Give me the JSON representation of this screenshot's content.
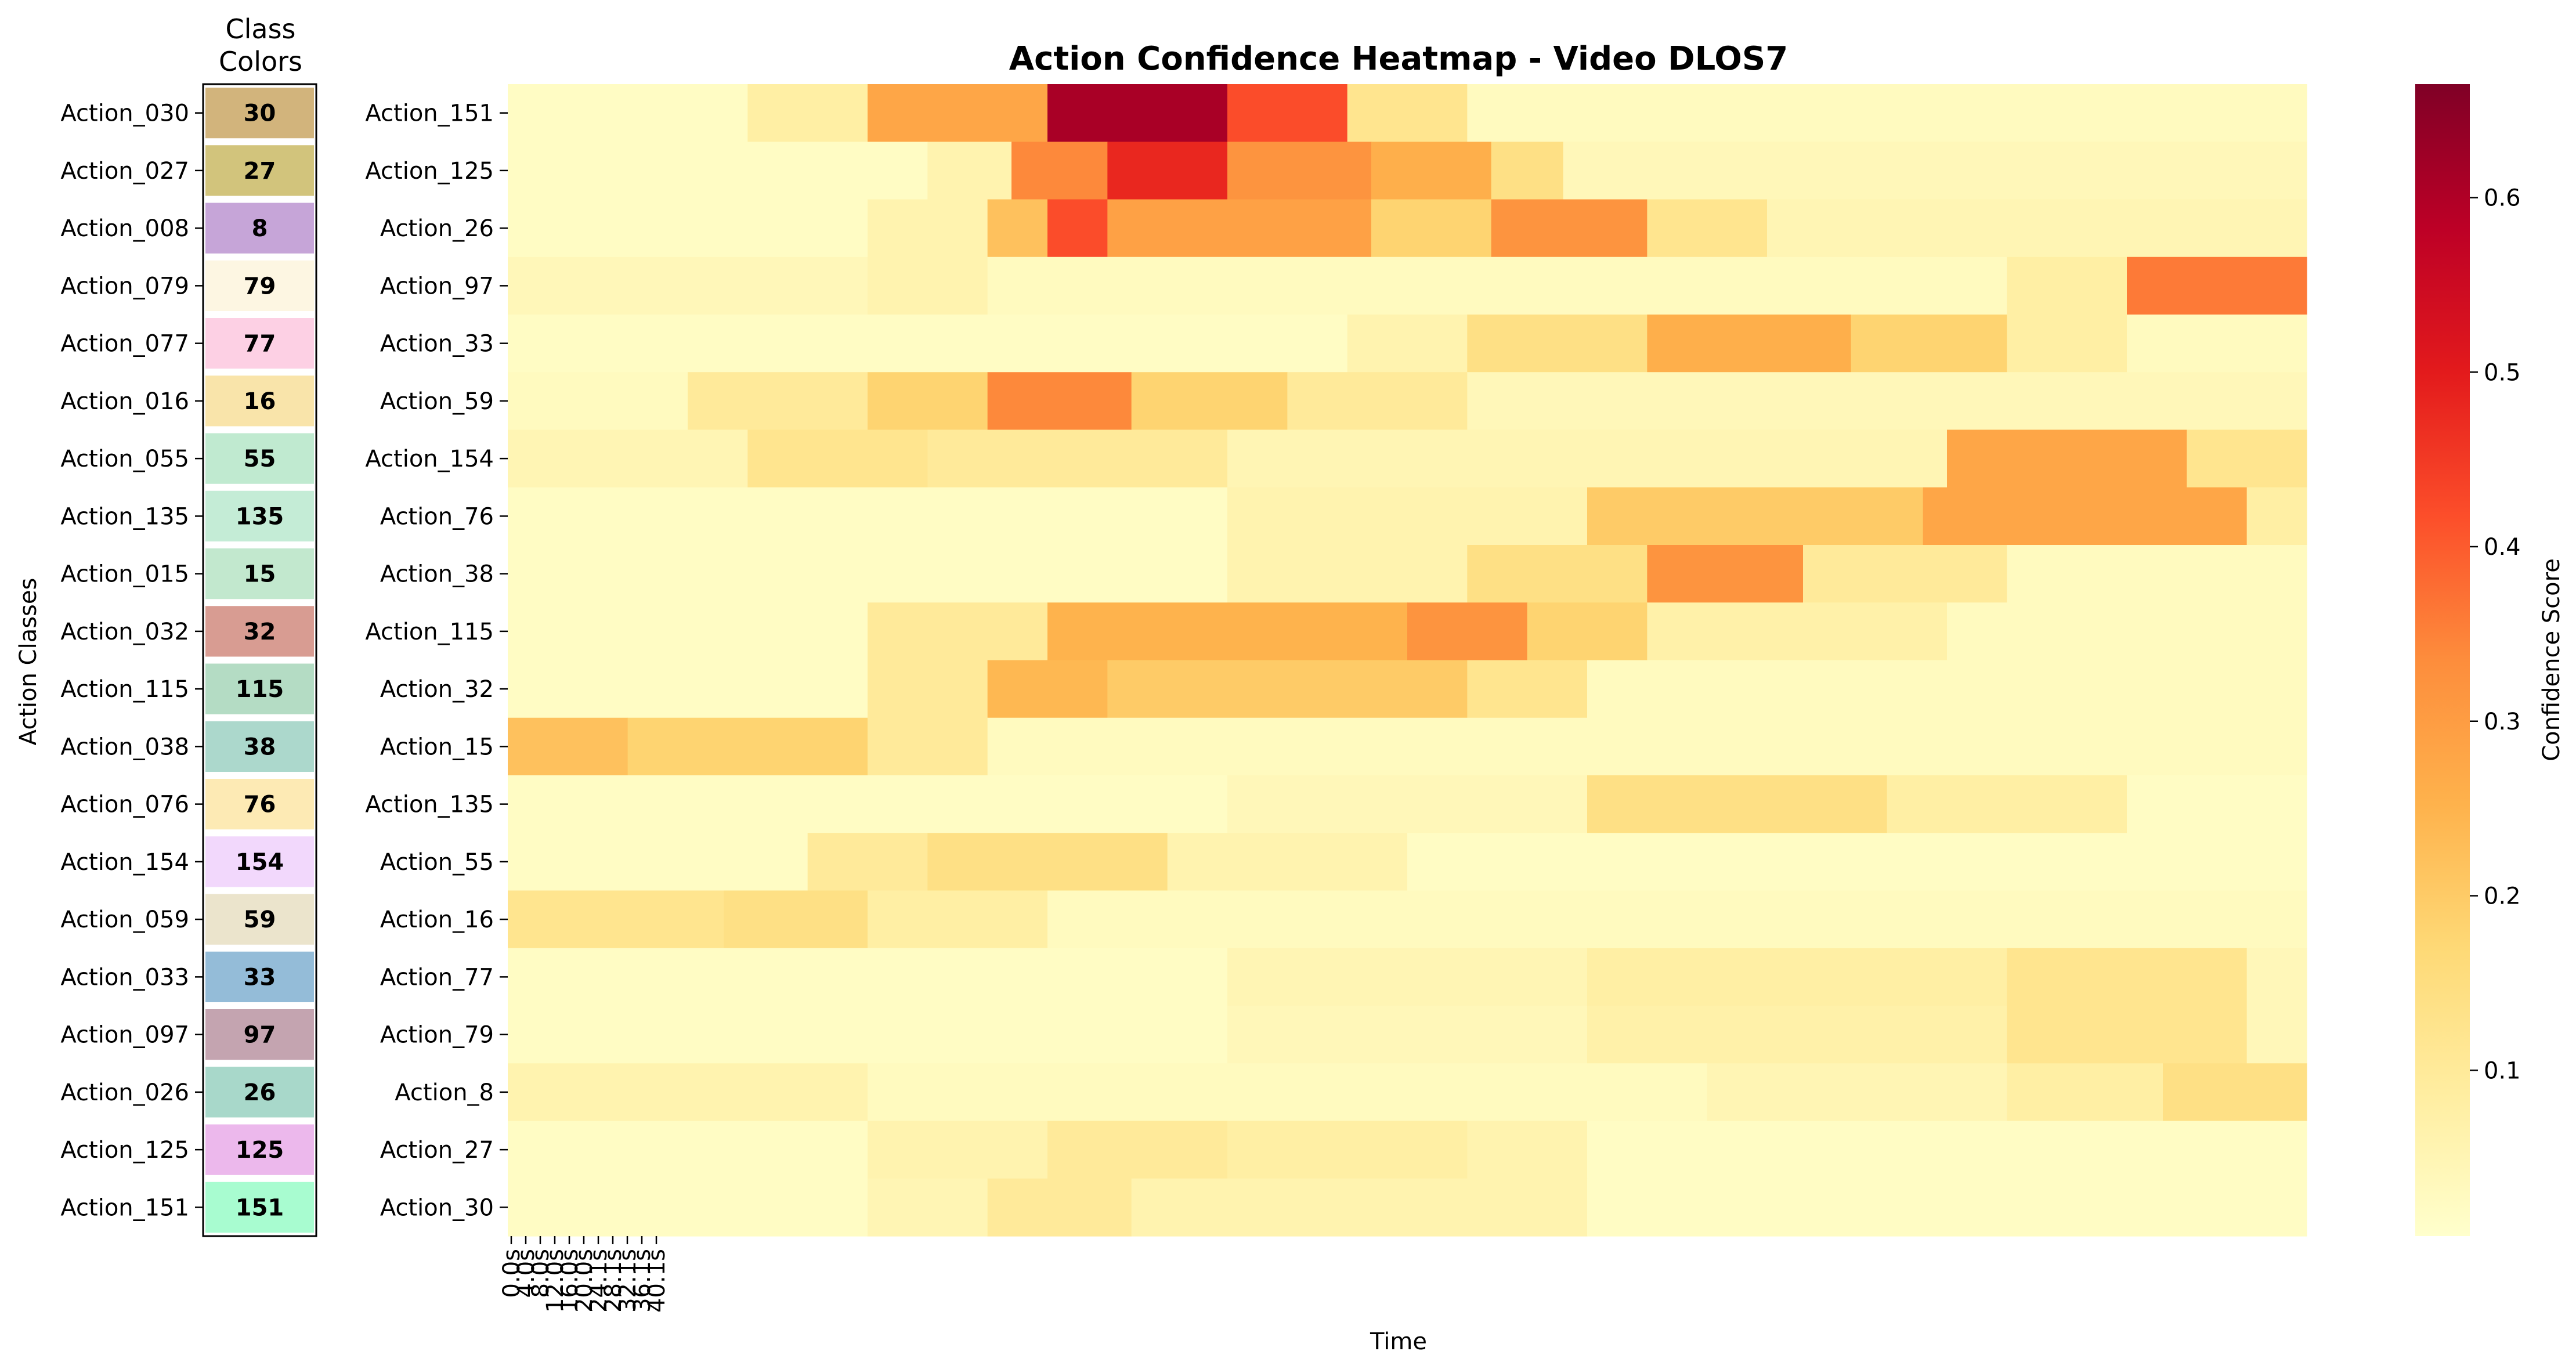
{
  "chart_data": {
    "type": "heatmap",
    "title": "Action Confidence Heatmap - Video DLOS7",
    "xlabel": "Time",
    "ylabel": "Action Classes",
    "colorbar_label": "Confidence Score",
    "colorbar_range": [
      0.005,
      0.665
    ],
    "colorbar_ticks": [
      "0.1",
      "0.2",
      "0.3",
      "0.4",
      "0.5",
      "0.6"
    ],
    "colormap": [
      "#ffffcc",
      "#ffeda0",
      "#fed976",
      "#feb24c",
      "#fd8d3c",
      "#fc4e2a",
      "#e31a1c",
      "#bd0026",
      "#800026"
    ],
    "time_ticks": [
      "0.0s",
      "4.0s",
      "8.0s",
      "12.0s",
      "16.0s",
      "20.0s",
      "24.1s",
      "28.1s",
      "32.1s",
      "36.1s",
      "40.1s"
    ],
    "time_step_count": 150,
    "rows": [
      {
        "label": "Action_151",
        "segments": [
          [
            0,
            20,
            0.02
          ],
          [
            20,
            30,
            0.08
          ],
          [
            30,
            45,
            0.28
          ],
          [
            45,
            60,
            0.61
          ],
          [
            60,
            70,
            0.42
          ],
          [
            70,
            80,
            0.12
          ],
          [
            80,
            150,
            0.03
          ]
        ]
      },
      {
        "label": "Action_125",
        "segments": [
          [
            0,
            35,
            0.02
          ],
          [
            35,
            42,
            0.06
          ],
          [
            42,
            50,
            0.34
          ],
          [
            50,
            60,
            0.48
          ],
          [
            60,
            72,
            0.32
          ],
          [
            72,
            82,
            0.26
          ],
          [
            82,
            88,
            0.14
          ],
          [
            88,
            150,
            0.04
          ]
        ]
      },
      {
        "label": "Action_26",
        "segments": [
          [
            0,
            30,
            0.02
          ],
          [
            30,
            40,
            0.06
          ],
          [
            40,
            45,
            0.22
          ],
          [
            45,
            50,
            0.42
          ],
          [
            50,
            72,
            0.29
          ],
          [
            72,
            82,
            0.18
          ],
          [
            82,
            95,
            0.32
          ],
          [
            95,
            105,
            0.12
          ],
          [
            105,
            150,
            0.05
          ]
        ]
      },
      {
        "label": "Action_97",
        "segments": [
          [
            0,
            30,
            0.04
          ],
          [
            30,
            40,
            0.06
          ],
          [
            40,
            125,
            0.03
          ],
          [
            125,
            135,
            0.08
          ],
          [
            135,
            150,
            0.36
          ]
        ]
      },
      {
        "label": "Action_33",
        "segments": [
          [
            0,
            70,
            0.02
          ],
          [
            70,
            80,
            0.06
          ],
          [
            80,
            95,
            0.14
          ],
          [
            95,
            112,
            0.26
          ],
          [
            112,
            125,
            0.18
          ],
          [
            125,
            135,
            0.08
          ],
          [
            135,
            150,
            0.03
          ]
        ]
      },
      {
        "label": "Action_59",
        "segments": [
          [
            0,
            15,
            0.03
          ],
          [
            15,
            30,
            0.1
          ],
          [
            30,
            40,
            0.18
          ],
          [
            40,
            52,
            0.34
          ],
          [
            52,
            65,
            0.18
          ],
          [
            65,
            80,
            0.1
          ],
          [
            80,
            150,
            0.04
          ]
        ]
      },
      {
        "label": "Action_154",
        "segments": [
          [
            0,
            20,
            0.05
          ],
          [
            20,
            35,
            0.12
          ],
          [
            35,
            60,
            0.1
          ],
          [
            60,
            120,
            0.05
          ],
          [
            120,
            140,
            0.28
          ],
          [
            140,
            150,
            0.12
          ]
        ]
      },
      {
        "label": "Action_76",
        "segments": [
          [
            0,
            60,
            0.02
          ],
          [
            60,
            90,
            0.06
          ],
          [
            90,
            118,
            0.2
          ],
          [
            118,
            145,
            0.28
          ],
          [
            145,
            150,
            0.08
          ]
        ]
      },
      {
        "label": "Action_38",
        "segments": [
          [
            0,
            60,
            0.02
          ],
          [
            60,
            80,
            0.06
          ],
          [
            80,
            95,
            0.14
          ],
          [
            95,
            108,
            0.32
          ],
          [
            108,
            125,
            0.1
          ],
          [
            125,
            150,
            0.03
          ]
        ]
      },
      {
        "label": "Action_115",
        "segments": [
          [
            0,
            30,
            0.02
          ],
          [
            30,
            45,
            0.1
          ],
          [
            45,
            75,
            0.25
          ],
          [
            75,
            85,
            0.32
          ],
          [
            85,
            95,
            0.18
          ],
          [
            95,
            120,
            0.07
          ],
          [
            120,
            150,
            0.03
          ]
        ]
      },
      {
        "label": "Action_32",
        "segments": [
          [
            0,
            30,
            0.02
          ],
          [
            30,
            40,
            0.1
          ],
          [
            40,
            50,
            0.24
          ],
          [
            50,
            80,
            0.2
          ],
          [
            80,
            90,
            0.12
          ],
          [
            90,
            150,
            0.03
          ]
        ]
      },
      {
        "label": "Action_15",
        "segments": [
          [
            0,
            10,
            0.22
          ],
          [
            10,
            30,
            0.18
          ],
          [
            30,
            40,
            0.1
          ],
          [
            40,
            150,
            0.03
          ]
        ]
      },
      {
        "label": "Action_135",
        "segments": [
          [
            0,
            60,
            0.02
          ],
          [
            60,
            90,
            0.04
          ],
          [
            90,
            115,
            0.14
          ],
          [
            115,
            135,
            0.08
          ],
          [
            135,
            150,
            0.02
          ]
        ]
      },
      {
        "label": "Action_55",
        "segments": [
          [
            0,
            25,
            0.02
          ],
          [
            25,
            35,
            0.1
          ],
          [
            35,
            55,
            0.14
          ],
          [
            55,
            75,
            0.06
          ],
          [
            75,
            150,
            0.02
          ]
        ]
      },
      {
        "label": "Action_16",
        "segments": [
          [
            0,
            18,
            0.12
          ],
          [
            18,
            30,
            0.14
          ],
          [
            30,
            45,
            0.08
          ],
          [
            45,
            150,
            0.03
          ]
        ]
      },
      {
        "label": "Action_77",
        "segments": [
          [
            0,
            60,
            0.02
          ],
          [
            60,
            90,
            0.05
          ],
          [
            90,
            125,
            0.08
          ],
          [
            125,
            145,
            0.12
          ],
          [
            145,
            150,
            0.04
          ]
        ]
      },
      {
        "label": "Action_79",
        "segments": [
          [
            0,
            60,
            0.02
          ],
          [
            60,
            90,
            0.04
          ],
          [
            90,
            125,
            0.07
          ],
          [
            125,
            145,
            0.12
          ],
          [
            145,
            150,
            0.04
          ]
        ]
      },
      {
        "label": "Action_8",
        "segments": [
          [
            0,
            30,
            0.06
          ],
          [
            30,
            100,
            0.03
          ],
          [
            100,
            125,
            0.05
          ],
          [
            125,
            138,
            0.08
          ],
          [
            138,
            150,
            0.14
          ]
        ]
      },
      {
        "label": "Action_27",
        "segments": [
          [
            0,
            30,
            0.02
          ],
          [
            30,
            45,
            0.06
          ],
          [
            45,
            60,
            0.1
          ],
          [
            60,
            80,
            0.08
          ],
          [
            80,
            90,
            0.06
          ],
          [
            90,
            150,
            0.02
          ]
        ]
      },
      {
        "label": "Action_30",
        "segments": [
          [
            0,
            30,
            0.02
          ],
          [
            30,
            40,
            0.05
          ],
          [
            40,
            52,
            0.1
          ],
          [
            52,
            70,
            0.06
          ],
          [
            70,
            90,
            0.06
          ],
          [
            90,
            150,
            0.02
          ]
        ]
      }
    ],
    "class_colors": {
      "title": [
        "Class",
        "Colors"
      ],
      "items": [
        {
          "label": "Action_030",
          "value": "30",
          "color": "#d2b47c"
        },
        {
          "label": "Action_027",
          "value": "27",
          "color": "#d2c47c"
        },
        {
          "label": "Action_008",
          "value": "8",
          "color": "#c6a5d8"
        },
        {
          "label": "Action_079",
          "value": "79",
          "color": "#fdf6e2"
        },
        {
          "label": "Action_077",
          "value": "77",
          "color": "#fdd0e4"
        },
        {
          "label": "Action_016",
          "value": "16",
          "color": "#f9e4aa"
        },
        {
          "label": "Action_055",
          "value": "55",
          "color": "#c0ead0"
        },
        {
          "label": "Action_135",
          "value": "135",
          "color": "#c4ecd6"
        },
        {
          "label": "Action_015",
          "value": "15",
          "color": "#c2e8ce"
        },
        {
          "label": "Action_032",
          "value": "32",
          "color": "#d89c92"
        },
        {
          "label": "Action_115",
          "value": "115",
          "color": "#b4dcc4"
        },
        {
          "label": "Action_038",
          "value": "38",
          "color": "#acd8cc"
        },
        {
          "label": "Action_076",
          "value": "76",
          "color": "#fdeab4"
        },
        {
          "label": "Action_154",
          "value": "154",
          "color": "#f2d8fc"
        },
        {
          "label": "Action_059",
          "value": "59",
          "color": "#ebe4cc"
        },
        {
          "label": "Action_033",
          "value": "33",
          "color": "#94bcd8"
        },
        {
          "label": "Action_097",
          "value": "97",
          "color": "#c4a4b0"
        },
        {
          "label": "Action_026",
          "value": "26",
          "color": "#a8d8ca"
        },
        {
          "label": "Action_125",
          "value": "125",
          "color": "#ecb8ec"
        },
        {
          "label": "Action_151",
          "value": "151",
          "color": "#a8fcd0"
        }
      ]
    }
  }
}
